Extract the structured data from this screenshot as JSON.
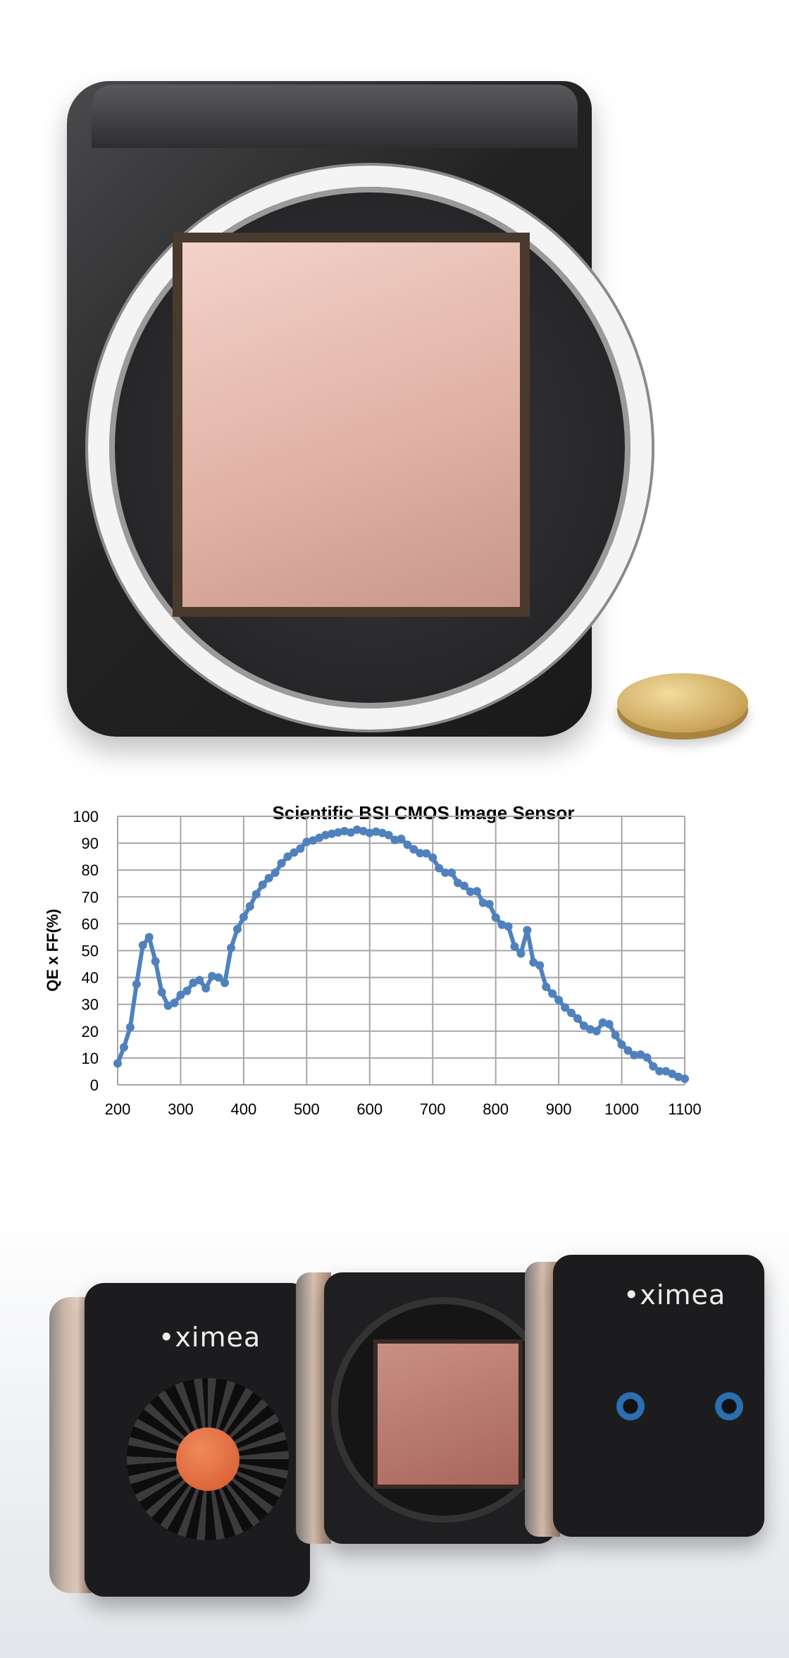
{
  "colors": {
    "series": "#4f81bd",
    "grid": "#a6a6a6",
    "camera_body": "#2b2b2d",
    "sensor": "#d9a79b",
    "lens_ring": "#f2f2f2",
    "coin": "#d8b46a"
  },
  "photos": {
    "top": {
      "subject": "large-format camera with lens mount ring and sensor, next to a coin"
    },
    "bottom": {
      "subject": "three ximea cameras",
      "logo_text": "ximea"
    }
  },
  "chart_data": {
    "type": "line",
    "title": "Scientific BSI CMOS Image Sensor",
    "xlabel": "",
    "ylabel": "QE x FF(%)",
    "xlim": [
      200,
      1100
    ],
    "ylim": [
      0,
      100
    ],
    "grid": true,
    "legend": "none",
    "markers": true,
    "x_ticks": [
      "200",
      "300",
      "400",
      "500",
      "600",
      "700",
      "800",
      "900",
      "1000",
      "1100"
    ],
    "y_ticks": [
      "0",
      "10",
      "20",
      "30",
      "40",
      "50",
      "60",
      "70",
      "80",
      "90",
      "100"
    ],
    "x": [
      200,
      210,
      220,
      230,
      240,
      250,
      260,
      270,
      280,
      290,
      300,
      310,
      320,
      330,
      340,
      350,
      360,
      370,
      380,
      390,
      400,
      410,
      420,
      430,
      440,
      450,
      460,
      470,
      480,
      490,
      500,
      510,
      520,
      530,
      540,
      550,
      560,
      570,
      580,
      590,
      600,
      610,
      620,
      630,
      640,
      650,
      660,
      670,
      680,
      690,
      700,
      710,
      720,
      730,
      740,
      750,
      760,
      770,
      780,
      790,
      800,
      810,
      820,
      830,
      840,
      850,
      860,
      870,
      880,
      890,
      900,
      910,
      920,
      930,
      940,
      950,
      960,
      970,
      980,
      990,
      1000,
      1010,
      1020,
      1030,
      1040,
      1050,
      1060,
      1070,
      1080,
      1090,
      1100
    ],
    "values": [
      8,
      14,
      21.5,
      37.5,
      52,
      55,
      46,
      34.5,
      29.5,
      30.5,
      33.5,
      35,
      38,
      39,
      36,
      40.5,
      40,
      38,
      51,
      58,
      62.5,
      66.5,
      71,
      74.5,
      77,
      79,
      82.5,
      85,
      86.5,
      88,
      90.5,
      91,
      92,
      93,
      93.5,
      94,
      94.5,
      94,
      95,
      94.5,
      93.8,
      94.3,
      93.8,
      93,
      91.2,
      91.6,
      89.4,
      87.7,
      86.3,
      86.2,
      84.6,
      80.7,
      79,
      79,
      75.2,
      74.1,
      71.9,
      72.1,
      67.8,
      67.3,
      62.3,
      59.6,
      59,
      51.5,
      48.9,
      57.6,
      45.6,
      44.5,
      36.5,
      34,
      31.6,
      28.8,
      26.8,
      24.7,
      22,
      20.7,
      20,
      23.2,
      22.6,
      18.5,
      15,
      12.8,
      11.1,
      11.3,
      10.2,
      6.9,
      5.1,
      5.1,
      4.1,
      3,
      2.3
    ]
  }
}
